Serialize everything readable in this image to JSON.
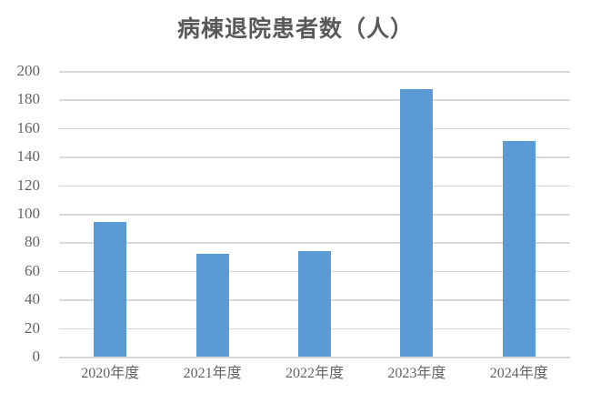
{
  "chart_data": {
    "type": "bar",
    "title": "病棟退院患者数（人）",
    "categories": [
      "2020年度",
      "2021年度",
      "2022年度",
      "2023年度",
      "2024年度"
    ],
    "values": [
      94,
      72,
      74,
      187,
      151
    ],
    "ylim": [
      0,
      200
    ],
    "yticks": [
      0,
      20,
      40,
      60,
      80,
      100,
      120,
      140,
      160,
      180,
      200
    ],
    "grid": true,
    "legend": "none",
    "colors": {
      "bar": "#5B9BD5",
      "gridline": "#D9D9D9",
      "axis_line": "#D6D6D6",
      "title_text": "#595959",
      "tick_text": "#636363",
      "background": "#FFFFFF"
    }
  }
}
